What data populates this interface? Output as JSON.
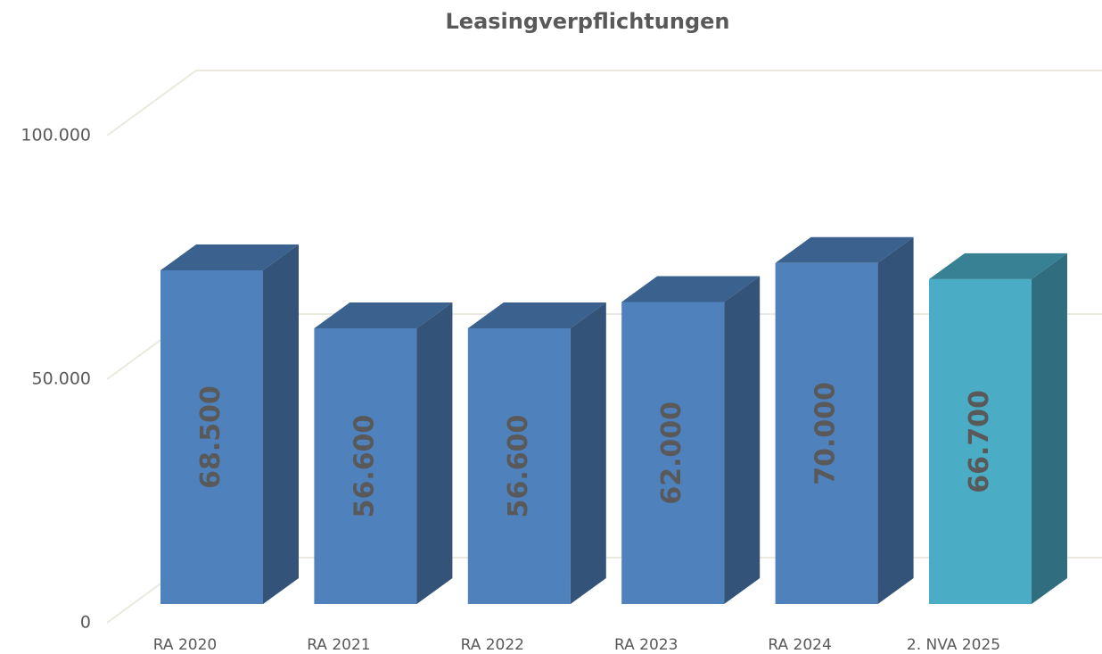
{
  "chart_data": {
    "type": "bar3d",
    "title": "Leasingverpflichtungen",
    "categories": [
      "RA 2020",
      "RA 2021",
      "RA 2022",
      "RA 2023",
      "RA 2024",
      "2. NVA 2025"
    ],
    "values": [
      68500,
      56600,
      56600,
      62000,
      70000,
      66700
    ],
    "value_labels": [
      "68.500",
      "56.600",
      "56.600",
      "62.000",
      "70.000",
      "66.700"
    ],
    "colors": [
      "#4f81bd",
      "#4f81bd",
      "#4f81bd",
      "#4f81bd",
      "#4f81bd",
      "#4bacc6"
    ],
    "ylim": [
      0,
      100000
    ],
    "yticks": [
      {
        "value": 0,
        "label": "0"
      },
      {
        "value": 50000,
        "label": "50.000"
      },
      {
        "value": 100000,
        "label": "100.000"
      }
    ],
    "grid": true
  }
}
